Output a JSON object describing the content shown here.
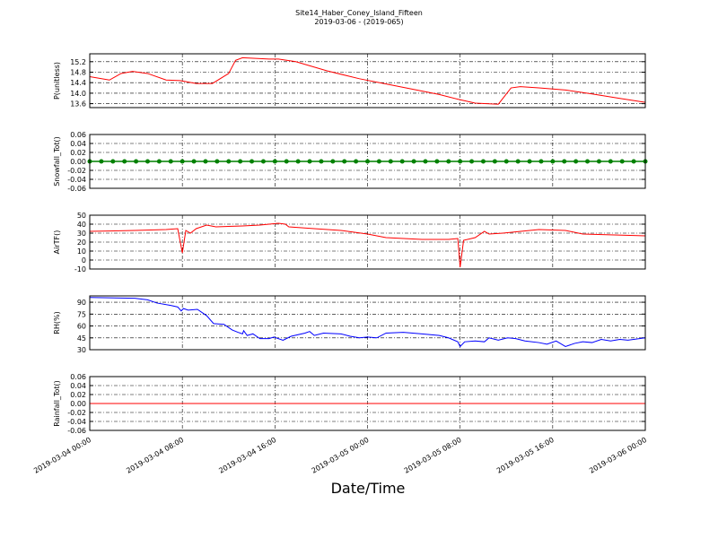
{
  "title": "Site14_Haber_Coney_Island_Fifteen",
  "subtitle": "2019-03-06 - (2019-065)",
  "xlabel": "Date/Time",
  "xlim": [
    0,
    48
  ],
  "xticks": [
    {
      "value": 0,
      "label": "2019-03-04 00:00"
    },
    {
      "value": 8,
      "label": "2019-03-04 08:00"
    },
    {
      "value": 16,
      "label": "2019-03-04 16:00"
    },
    {
      "value": 24,
      "label": "2019-03-05 00:00"
    },
    {
      "value": 32,
      "label": "2019-03-05 08:00"
    },
    {
      "value": 40,
      "label": "2019-03-05 16:00"
    },
    {
      "value": 48,
      "label": "2019-03-06 00:00"
    }
  ],
  "chart_data": [
    {
      "type": "line",
      "ylabel": "P(unitless)",
      "ylim": [
        13.45,
        15.5
      ],
      "yticks": [
        13.6,
        {
          "value": 14,
          "label": "14.0"
        },
        14.4,
        14.8,
        15.2
      ],
      "grid": true,
      "x": [
        0,
        1.7,
        2.7,
        3.7,
        5.0,
        6.6,
        7.8,
        9.2,
        10.6,
        12.0,
        12.6,
        13.2,
        15.5,
        16.3,
        17.8,
        20.5,
        23.3,
        25.6,
        27.9,
        30.2,
        31.8,
        33.3,
        35.3,
        36.4,
        37.2,
        38.8,
        41.1,
        43.4,
        45.8,
        48
      ],
      "series": [
        {
          "color": "#ff0000",
          "markers": false,
          "values": [
            14.63,
            14.5,
            14.75,
            14.83,
            14.75,
            14.5,
            14.48,
            14.37,
            14.37,
            14.75,
            15.25,
            15.35,
            15.3,
            15.3,
            15.2,
            14.85,
            14.55,
            14.35,
            14.15,
            13.95,
            13.77,
            13.62,
            13.58,
            14.2,
            14.25,
            14.2,
            14.12,
            13.97,
            13.8,
            13.65
          ]
        }
      ]
    },
    {
      "type": "line",
      "ylabel": "Snowfall_Tot()",
      "ylim": [
        -0.06,
        0.06
      ],
      "yticks": [
        -0.06,
        -0.04,
        -0.02,
        {
          "value": 0,
          "label": "0.00"
        },
        0.02,
        0.04,
        0.06
      ],
      "grid": true,
      "x": [
        0,
        1,
        2,
        3,
        4,
        5,
        6,
        7,
        8,
        9,
        10,
        11,
        12,
        13,
        14,
        15,
        16,
        17,
        18,
        19,
        20,
        21,
        22,
        23,
        24,
        25,
        26,
        27,
        28,
        29,
        30,
        31,
        32,
        33,
        34,
        35,
        36,
        37,
        38,
        39,
        40,
        41,
        42,
        43,
        44,
        45,
        46,
        47,
        48
      ],
      "series": [
        {
          "color": "#008000",
          "markers": true,
          "values": [
            0,
            0,
            0,
            0,
            0,
            0,
            0,
            0,
            0,
            0,
            0,
            0,
            0,
            0,
            0,
            0,
            0,
            0,
            0,
            0,
            0,
            0,
            0,
            0,
            0,
            0,
            0,
            0,
            0,
            0,
            0,
            0,
            0,
            0,
            0,
            0,
            0,
            0,
            0,
            0,
            0,
            0,
            0,
            0,
            0,
            0,
            0,
            0,
            0
          ]
        }
      ]
    },
    {
      "type": "line",
      "ylabel": "AirTF()",
      "ylim": [
        -10,
        50
      ],
      "yticks": [
        -10,
        0,
        10,
        20,
        30,
        40,
        50
      ],
      "grid": true,
      "x": [
        0,
        3.9,
        6.6,
        7.6,
        8.0,
        8.3,
        8.7,
        9.2,
        10.1,
        10.9,
        13.2,
        14.7,
        15.5,
        16.3,
        16.9,
        17.2,
        19.4,
        21.7,
        24.0,
        25.6,
        28.7,
        31.0,
        31.8,
        32.0,
        32.3,
        33.3,
        34.1,
        34.5,
        35.7,
        38.8,
        41.1,
        42.6,
        48
      ],
      "series": [
        {
          "color": "#ff0000",
          "markers": false,
          "values": [
            32,
            33,
            34,
            35,
            8,
            33,
            30,
            35,
            39,
            37,
            38,
            39,
            40,
            41,
            40,
            37,
            35,
            33,
            29,
            25,
            23,
            23,
            24,
            -8,
            22,
            25,
            32,
            29,
            30,
            34,
            33,
            29,
            27
          ]
        }
      ]
    },
    {
      "type": "line",
      "ylabel": "RH(%)",
      "ylim": [
        30,
        98
      ],
      "yticks": [
        30,
        45,
        60,
        75,
        90
      ],
      "grid": true,
      "x": [
        0,
        3.9,
        5.0,
        5.8,
        7.0,
        7.6,
        7.9,
        8.1,
        8.5,
        9.3,
        10.1,
        10.7,
        11.6,
        12.3,
        12.8,
        13.2,
        13.3,
        13.6,
        14.1,
        14.7,
        15.5,
        15.9,
        16.7,
        17.4,
        18.6,
        19.0,
        19.4,
        20.2,
        21.7,
        22.5,
        23.3,
        24.0,
        24.8,
        25.6,
        27.1,
        28.7,
        30.2,
        31.0,
        31.8,
        32.0,
        32.4,
        33.3,
        34.1,
        34.5,
        35.3,
        36.1,
        36.8,
        37.6,
        38.8,
        39.5,
        40.3,
        41.1,
        41.9,
        42.6,
        43.4,
        44.2,
        45.0,
        45.8,
        46.5,
        48
      ],
      "series": [
        {
          "color": "#0000ff",
          "markers": false,
          "values": [
            96,
            95,
            93,
            89,
            86,
            84,
            79,
            82,
            80,
            81,
            73,
            63,
            62,
            55,
            52,
            50,
            54,
            48,
            50,
            44,
            44,
            46,
            42,
            47,
            51,
            53,
            48,
            51,
            50,
            47,
            45,
            46,
            45,
            51,
            52,
            50,
            48,
            45,
            40,
            34,
            40,
            41,
            40,
            45,
            42,
            45,
            44,
            41,
            39,
            37,
            41,
            34,
            38,
            40,
            39,
            43,
            41,
            43,
            42,
            45
          ]
        }
      ]
    },
    {
      "type": "line",
      "ylabel": "Rainfall_Tot()",
      "ylim": [
        -0.06,
        0.06
      ],
      "yticks": [
        -0.06,
        -0.04,
        -0.02,
        {
          "value": 0,
          "label": "0.00"
        },
        0.02,
        0.04,
        0.06
      ],
      "grid": true,
      "x": [
        0,
        48
      ],
      "series": [
        {
          "color": "#ff0000",
          "markers": false,
          "values": [
            0,
            0
          ]
        }
      ]
    }
  ]
}
